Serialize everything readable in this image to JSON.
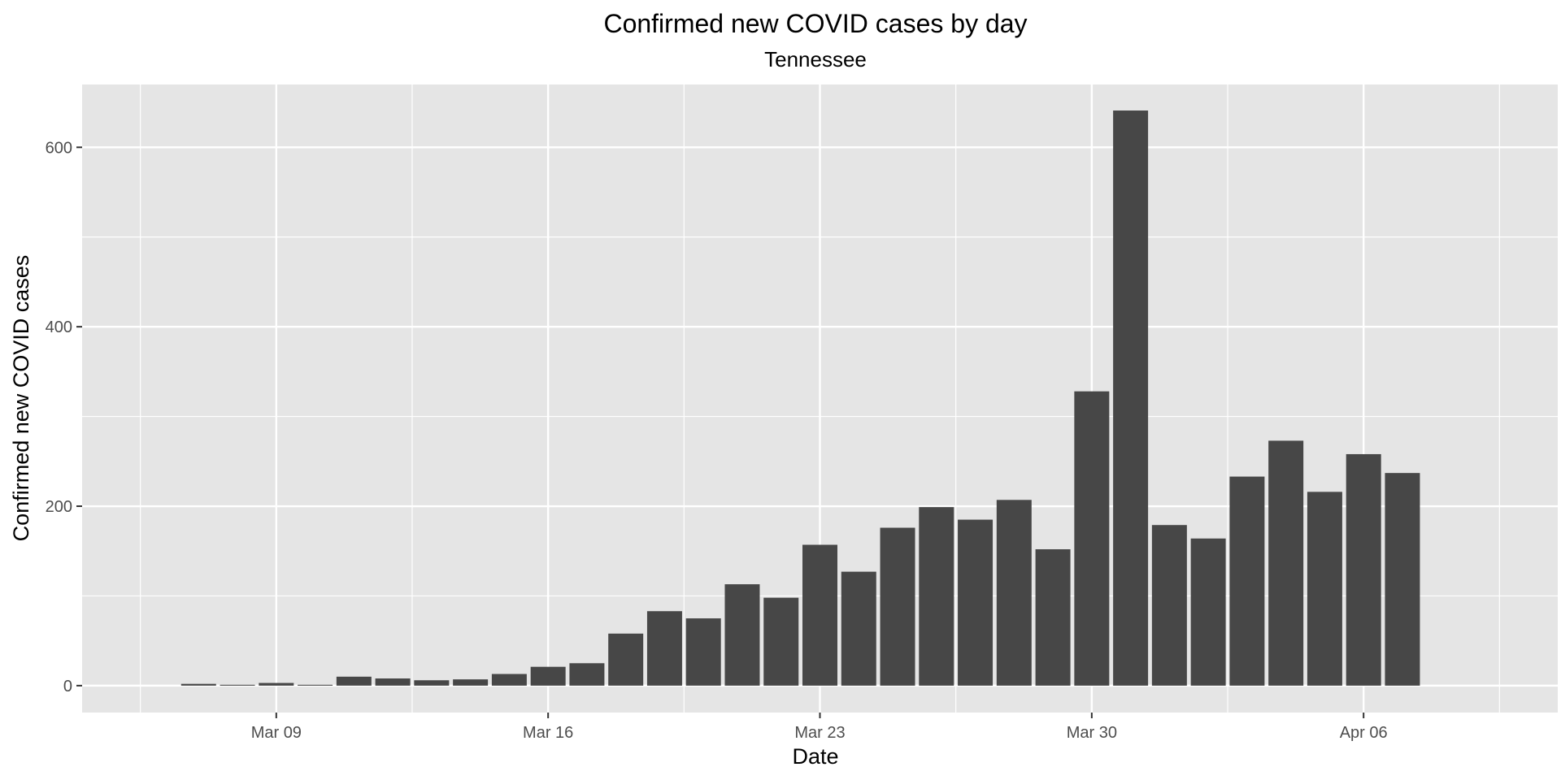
{
  "chart_data": {
    "type": "bar",
    "title": "Confirmed new COVID cases by day",
    "subtitle": "Tennessee",
    "xlabel": "Date",
    "ylabel": "Confirmed new COVID cases",
    "x_type": "date",
    "x_range": [
      "2020-03-04",
      "2020-04-11"
    ],
    "ylim": [
      -30,
      670
    ],
    "y_ticks": [
      0,
      200,
      400,
      600
    ],
    "x_ticks": [
      {
        "date": "2020-03-09",
        "label": "Mar 09"
      },
      {
        "date": "2020-03-16",
        "label": "Mar 16"
      },
      {
        "date": "2020-03-23",
        "label": "Mar 23"
      },
      {
        "date": "2020-03-30",
        "label": "Mar 30"
      },
      {
        "date": "2020-04-06",
        "label": "Apr 06"
      }
    ],
    "grid": true,
    "bar_color": "#474747",
    "panel_color": "#e5e5e5",
    "grid_color": "#ffffff",
    "data": [
      {
        "date": "2020-03-05",
        "value": 0
      },
      {
        "date": "2020-03-06",
        "value": 0
      },
      {
        "date": "2020-03-07",
        "value": 2
      },
      {
        "date": "2020-03-08",
        "value": 1
      },
      {
        "date": "2020-03-09",
        "value": 3
      },
      {
        "date": "2020-03-10",
        "value": 1
      },
      {
        "date": "2020-03-11",
        "value": 10
      },
      {
        "date": "2020-03-12",
        "value": 8
      },
      {
        "date": "2020-03-13",
        "value": 6
      },
      {
        "date": "2020-03-14",
        "value": 7
      },
      {
        "date": "2020-03-15",
        "value": 13
      },
      {
        "date": "2020-03-16",
        "value": 21
      },
      {
        "date": "2020-03-17",
        "value": 25
      },
      {
        "date": "2020-03-18",
        "value": 58
      },
      {
        "date": "2020-03-19",
        "value": 83
      },
      {
        "date": "2020-03-20",
        "value": 75
      },
      {
        "date": "2020-03-21",
        "value": 113
      },
      {
        "date": "2020-03-22",
        "value": 98
      },
      {
        "date": "2020-03-23",
        "value": 157
      },
      {
        "date": "2020-03-24",
        "value": 127
      },
      {
        "date": "2020-03-25",
        "value": 176
      },
      {
        "date": "2020-03-26",
        "value": 199
      },
      {
        "date": "2020-03-27",
        "value": 185
      },
      {
        "date": "2020-03-28",
        "value": 207
      },
      {
        "date": "2020-03-29",
        "value": 152
      },
      {
        "date": "2020-03-30",
        "value": 328
      },
      {
        "date": "2020-03-31",
        "value": 641
      },
      {
        "date": "2020-04-01",
        "value": 179
      },
      {
        "date": "2020-04-02",
        "value": 164
      },
      {
        "date": "2020-04-03",
        "value": 233
      },
      {
        "date": "2020-04-04",
        "value": 273
      },
      {
        "date": "2020-04-05",
        "value": 216
      },
      {
        "date": "2020-04-06",
        "value": 258
      },
      {
        "date": "2020-04-07",
        "value": 237
      }
    ]
  }
}
